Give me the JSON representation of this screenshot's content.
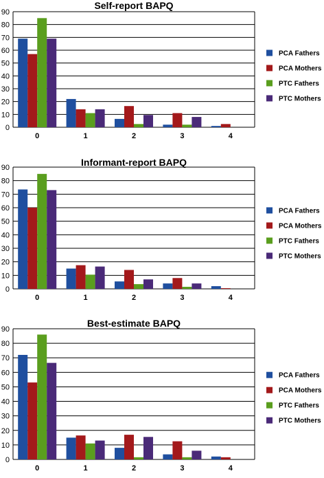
{
  "colors": {
    "PCA Fathers": "#1f4f9f",
    "PCA Mothers": "#a3191b",
    "PTC Fathers": "#5a9e1e",
    "PTC Mothers": "#4a2a78",
    "grid": "#000000",
    "background": "#ffffff"
  },
  "chart_data": [
    {
      "type": "bar",
      "title": "Self-report BAPQ",
      "categories": [
        "0",
        "1",
        "2",
        "3",
        "4"
      ],
      "ylim": [
        0,
        90
      ],
      "yticks": [
        "0",
        "10",
        "20",
        "30",
        "40",
        "50",
        "60",
        "70",
        "80",
        "90"
      ],
      "grid": true,
      "legend": "right",
      "series": [
        {
          "name": "PCA Fathers",
          "values": [
            69,
            22,
            6.5,
            2,
            1
          ]
        },
        {
          "name": "PCA Mothers",
          "values": [
            57,
            14,
            16.5,
            11,
            2.5
          ]
        },
        {
          "name": "PTC Fathers",
          "values": [
            85,
            11,
            2.5,
            2,
            0
          ]
        },
        {
          "name": "PTC Mothers",
          "values": [
            69,
            14,
            9.5,
            8,
            0
          ]
        }
      ]
    },
    {
      "type": "bar",
      "title": "Informant-report BAPQ",
      "categories": [
        "0",
        "1",
        "2",
        "3",
        "4"
      ],
      "ylim": [
        0,
        90
      ],
      "yticks": [
        "0",
        "10",
        "20",
        "30",
        "40",
        "50",
        "60",
        "70",
        "80",
        "90"
      ],
      "grid": true,
      "legend": "right",
      "series": [
        {
          "name": "PCA Fathers",
          "values": [
            73.5,
            15,
            5.5,
            4,
            2
          ]
        },
        {
          "name": "PCA Mothers",
          "values": [
            60,
            17.5,
            14,
            8,
            0.5
          ]
        },
        {
          "name": "PTC Fathers",
          "values": [
            85,
            10.5,
            3.5,
            1.5,
            0
          ]
        },
        {
          "name": "PTC Mothers",
          "values": [
            73,
            16.5,
            7,
            4,
            0
          ]
        }
      ]
    },
    {
      "type": "bar",
      "title": "Best-estimate BAPQ",
      "categories": [
        "0",
        "1",
        "2",
        "3",
        "4"
      ],
      "ylim": [
        0,
        90
      ],
      "yticks": [
        "0",
        "10",
        "20",
        "30",
        "40",
        "50",
        "60",
        "70",
        "80",
        "90"
      ],
      "grid": true,
      "legend": "right",
      "series": [
        {
          "name": "PCA Fathers",
          "values": [
            72,
            15,
            8,
            3.5,
            2
          ]
        },
        {
          "name": "PCA Mothers",
          "values": [
            53,
            16.5,
            17,
            12.5,
            1.5
          ]
        },
        {
          "name": "PTC Fathers",
          "values": [
            86,
            11,
            1.5,
            1.5,
            0
          ]
        },
        {
          "name": "PTC Mothers",
          "values": [
            66.5,
            13,
            15.5,
            6,
            0
          ]
        }
      ]
    }
  ]
}
